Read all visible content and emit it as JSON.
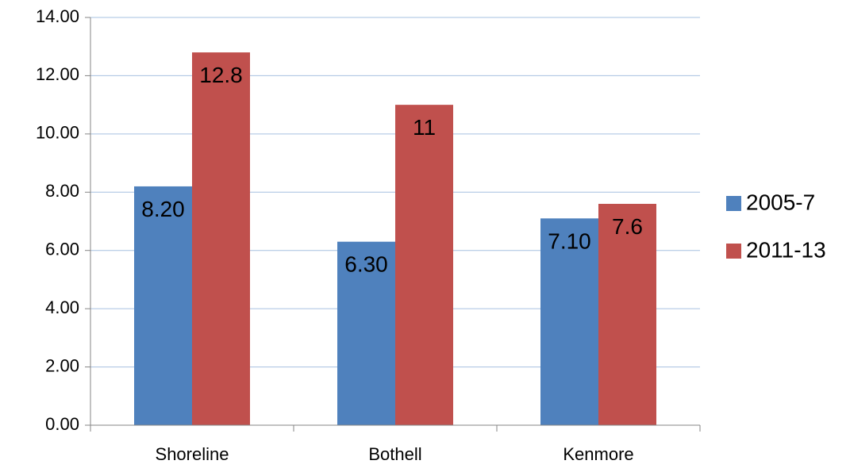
{
  "chart_data": {
    "type": "bar",
    "title": "",
    "xlabel": "",
    "ylabel": "",
    "categories": [
      "Shoreline",
      "Bothell",
      "Kenmore"
    ],
    "series": [
      {
        "name": "2005-7",
        "color": "#4F81BD",
        "values": [
          8.2,
          6.3,
          7.1
        ],
        "data_labels": [
          "8.20",
          "6.30",
          "7.10"
        ]
      },
      {
        "name": "2011-13",
        "color": "#C0504D",
        "values": [
          12.8,
          11,
          7.6
        ],
        "data_labels": [
          "12.8",
          "11",
          "7.6"
        ]
      }
    ],
    "ylim": [
      0,
      14
    ],
    "yticks": [
      0,
      2,
      4,
      6,
      8,
      10,
      12,
      14
    ],
    "ytick_labels": [
      "0.00",
      "2.00",
      "4.00",
      "6.00",
      "8.00",
      "10.00",
      "12.00",
      "14.00"
    ],
    "grid": true,
    "gridline_color": "#A6C0E0",
    "legend_position": "right"
  }
}
